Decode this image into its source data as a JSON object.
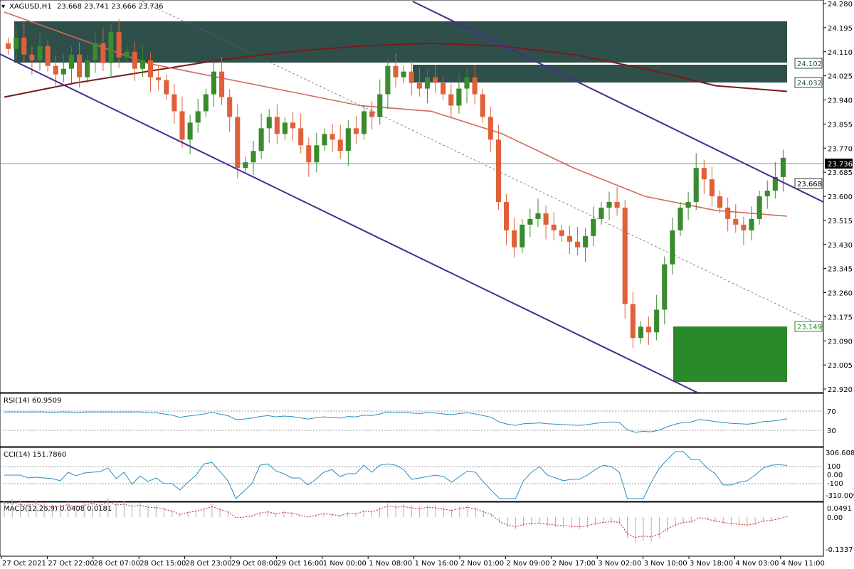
{
  "header": {
    "symbol": "XAGUSD,H1",
    "ohlc": "23.668 23.741 23.666 23.736"
  },
  "price_axis": {
    "ticks": [
      "24.280",
      "24.195",
      "24.110",
      "24.025",
      "23.940",
      "23.855",
      "23.770",
      "23.685",
      "23.600",
      "23.515",
      "23.430",
      "23.345",
      "23.260",
      "23.175",
      "23.090",
      "23.005",
      "22.920"
    ],
    "labels": {
      "current": "23.736",
      "upper_zone_top": "24.102",
      "upper_zone_bottom": "24.032",
      "channel_break": "23.668",
      "lower_zone_top": "23.149"
    }
  },
  "time_axis": {
    "labels": [
      "27 Oct 2021",
      "27 Oct 22:00",
      "28 Oct 07:00",
      "28 Oct 15:00",
      "28 Oct 23:00",
      "29 Oct 08:00",
      "29 Oct 16:00",
      "1 Nov 00:00",
      "1 Nov 08:00",
      "1 Nov 16:00",
      "2 Nov 01:00",
      "2 Nov 09:00",
      "2 Nov 17:00",
      "3 Nov 02:00",
      "3 Nov 10:00",
      "3 Nov 18:00",
      "4 Nov 03:00",
      "4 Nov 11:00"
    ]
  },
  "indicators": {
    "rsi": {
      "title": "RSI(14) 60.9509",
      "ticks": [
        "70",
        "30"
      ]
    },
    "cci": {
      "title": "CCI(14) 151.7860",
      "ticks": [
        "306.6082",
        "100",
        "0.00",
        "-100",
        "-310.009"
      ]
    },
    "macd": {
      "title": "MACD(12,26,9) 0.0408 0.0181",
      "ticks": [
        "0.0491",
        "0.00",
        "-0.1337"
      ]
    }
  },
  "colors": {
    "bull": "#3a8a2e",
    "bear": "#e0603a",
    "zone_dark": "#2f4f4b",
    "zone_green": "#2a8a2a",
    "channel": "#4b2a8f",
    "ma_slow": "#7a1a1a",
    "ma_fast": "#d06a5e",
    "rsi_line": "#2a8fc0",
    "signal": "#cc2222"
  },
  "chart_data": {
    "type": "candlestick",
    "symbol": "XAGUSD",
    "timeframe": "H1",
    "ylim": [
      22.92,
      24.28
    ],
    "last_ohlc": {
      "open": 23.668,
      "high": 23.741,
      "low": 23.666,
      "close": 23.736
    },
    "closes": [
      24.12,
      24.16,
      24.1,
      24.08,
      24.13,
      24.06,
      24.03,
      24.05,
      24.1,
      24.02,
      24.08,
      24.14,
      24.07,
      24.18,
      24.09,
      24.11,
      24.05,
      24.08,
      24.02,
      24.01,
      23.96,
      23.9,
      23.8,
      23.86,
      23.9,
      23.96,
      24.04,
      23.95,
      23.88,
      23.7,
      23.72,
      23.76,
      23.84,
      23.88,
      23.82,
      23.86,
      23.84,
      23.78,
      23.72,
      23.78,
      23.82,
      23.8,
      23.76,
      23.84,
      23.82,
      23.9,
      23.88,
      23.96,
      24.06,
      24.02,
      24.04,
      24.0,
      23.98,
      24.02,
      24.0,
      23.96,
      23.92,
      23.98,
      24.02,
      23.96,
      23.88,
      23.8,
      23.58,
      23.48,
      23.42,
      23.5,
      23.52,
      23.54,
      23.5,
      23.48,
      23.46,
      23.44,
      23.42,
      23.46,
      23.52,
      23.56,
      23.58,
      23.56,
      23.22,
      23.1,
      23.14,
      23.12,
      23.2,
      23.36,
      23.48,
      23.56,
      23.58,
      23.7,
      23.66,
      23.6,
      23.56,
      23.52,
      23.5,
      23.48,
      23.52,
      23.6,
      23.62,
      23.668,
      23.736
    ],
    "series": [
      {
        "name": "moving average (slow)",
        "values": [
          23.95,
          24.0,
          24.04,
          24.08,
          24.11,
          24.13,
          24.14,
          24.13,
          24.1,
          24.05,
          23.99,
          23.97
        ]
      },
      {
        "name": "moving average (fast)",
        "values": [
          24.25,
          24.16,
          24.07,
          24.02,
          23.97,
          23.92,
          23.9,
          23.82,
          23.7,
          23.6,
          23.55,
          23.53
        ]
      }
    ],
    "zones": [
      {
        "name": "supply zone",
        "from": 24.102,
        "to": 24.25
      },
      {
        "name": "resistance zone",
        "from": 24.032,
        "to": 24.102
      },
      {
        "name": "demand zone",
        "from": 22.96,
        "to": 23.149
      }
    ],
    "indicator_values": {
      "rsi14": 60.9509,
      "cci14": 151.786,
      "macd": {
        "main": 0.0408,
        "signal": 0.0181
      }
    }
  }
}
